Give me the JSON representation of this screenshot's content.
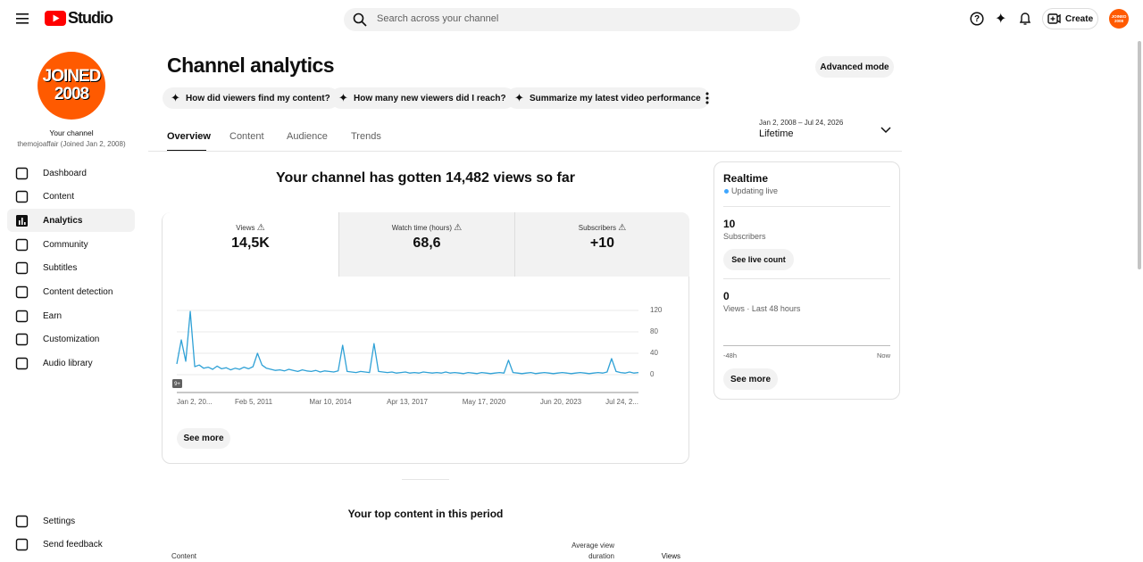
{
  "header": {
    "logo_text": "Studio",
    "search_placeholder": "Search across your channel",
    "create": "Create"
  },
  "sidebar": {
    "avatar_lines": [
      "JOINED",
      "2008"
    ],
    "your_channel": "Your channel",
    "channel_info": "themojoaffair (Joined Jan 2, 2008)",
    "nav": [
      "Dashboard",
      "Content",
      "Analytics",
      "Community",
      "Subtitles",
      "Content detection",
      "Earn",
      "Customization",
      "Audio library"
    ],
    "bottom_nav": [
      "Settings",
      "Send feedback"
    ]
  },
  "main": {
    "title": "Channel analytics",
    "advanced_mode": "Advanced mode",
    "chips": [
      "How did viewers find my content?",
      "How many new viewers did I reach?",
      "Summarize my latest video performance"
    ],
    "tabs": [
      "Overview",
      "Content",
      "Audience",
      "Trends"
    ],
    "date_range": "Jan 2, 2008 – Jul 24, 2026",
    "period": "Lifetime",
    "headline": "Your channel has gotten 14,482 views so far",
    "metrics": [
      {
        "label": "Views",
        "value": "14,5K"
      },
      {
        "label": "Watch time (hours)",
        "value": "68,6"
      },
      {
        "label": "Subscribers",
        "value": "+10"
      }
    ],
    "badge": "9+",
    "see_more": "See more",
    "top_content_title": "Your top content in this period",
    "table_headers": [
      "Content",
      "Average view duration",
      "Views"
    ]
  },
  "realtime": {
    "title": "Realtime",
    "status": "Updating live",
    "subscribers_value": "10",
    "subscribers_label": "Subscribers",
    "see_live_count": "See live count",
    "views_value": "0",
    "views_label": "Views · Last 48 hours",
    "axis_start": "-48h",
    "axis_end": "Now",
    "see_more": "See more"
  },
  "chart_data": {
    "type": "line",
    "color": "#2fa1d6",
    "ylim": [
      0,
      120
    ],
    "yticks": [
      0,
      40,
      80,
      120
    ],
    "grid": true,
    "xtick_labels": [
      "Jan 2, 20...",
      "Feb 5, 2011",
      "Mar 10, 2014",
      "Apr 13, 2017",
      "May 17, 2020",
      "Jun 20, 2023",
      "Jul 24, 2..."
    ],
    "values": [
      20,
      65,
      25,
      118,
      15,
      18,
      12,
      14,
      10,
      16,
      11,
      13,
      9,
      12,
      10,
      14,
      11,
      15,
      40,
      18,
      12,
      10,
      8,
      9,
      7,
      10,
      8,
      6,
      9,
      7,
      6,
      8,
      5,
      7,
      6,
      5,
      7,
      55,
      6,
      5,
      4,
      6,
      5,
      4,
      58,
      6,
      5,
      4,
      5,
      3,
      4,
      5,
      3,
      4,
      3,
      5,
      4,
      3,
      4,
      3,
      5,
      3,
      4,
      3,
      2,
      4,
      3,
      2,
      4,
      3,
      2,
      3,
      4,
      3,
      27,
      4,
      3,
      2,
      3,
      4,
      2,
      3,
      4,
      3,
      2,
      3,
      4,
      3,
      2,
      3,
      4,
      3,
      2,
      3,
      4,
      3,
      5,
      30,
      6,
      4,
      3,
      5,
      3,
      4
    ]
  }
}
